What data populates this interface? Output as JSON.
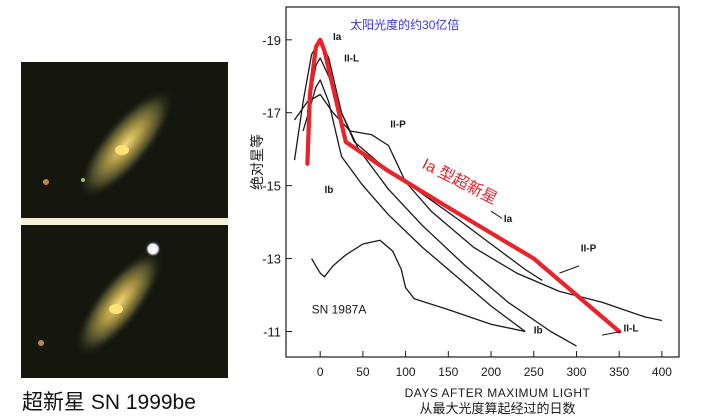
{
  "images": {
    "caption": "超新星 SN 1999be"
  },
  "chart_data": {
    "type": "line",
    "xlabel": "DAYS AFTER MAXIMUM LIGHT",
    "xlabel_cn": "从最大光度算起经过的日数",
    "ylabel": "绝对星等",
    "xlim": [
      -40,
      420
    ],
    "ylim": [
      -10.3,
      -19.9
    ],
    "y_inverted": true,
    "grid": false,
    "x_ticks": [
      0,
      50,
      100,
      150,
      200,
      250,
      300,
      350,
      400
    ],
    "y_ticks": [
      -19,
      -17,
      -15,
      -13,
      -11
    ],
    "annotation_top": "太阳光度的约30亿倍",
    "annotation_red": "Ia 型超新星",
    "inset_label": "SN 1987A",
    "series": [
      {
        "name": "Ia",
        "x": [
          -30,
          -20,
          -10,
          0,
          10,
          25,
          40,
          70,
          100,
          130,
          160,
          200,
          240,
          260
        ],
        "y": [
          -15.7,
          -17.3,
          -18.6,
          -19.0,
          -18.5,
          -17.0,
          -16.2,
          -15.6,
          -15.1,
          -14.6,
          -14.1,
          -13.4,
          -12.7,
          -12.4
        ],
        "label_pos": [
          15,
          -19.1
        ]
      },
      {
        "name": "II-L",
        "x": [
          -15,
          -5,
          0,
          10,
          25,
          45,
          80,
          120,
          170,
          220,
          270,
          300
        ],
        "y": [
          -17.0,
          -18.3,
          -18.5,
          -18.0,
          -17.0,
          -16.0,
          -14.9,
          -13.9,
          -12.8,
          -11.8,
          -11.0,
          -10.6
        ],
        "label_pos": [
          30,
          -18.5
        ]
      },
      {
        "name": "II-P",
        "x": [
          -30,
          -15,
          0,
          15,
          35,
          60,
          80,
          90,
          100,
          130,
          180,
          230,
          280,
          330,
          380,
          400
        ],
        "y": [
          -16.8,
          -17.3,
          -17.5,
          -17.0,
          -16.5,
          -16.4,
          -16.1,
          -15.6,
          -15.1,
          -14.3,
          -13.3,
          -12.6,
          -12.1,
          -11.8,
          -11.4,
          -11.3
        ],
        "label_pos": [
          80,
          -16.6
        ]
      },
      {
        "name": "Ib",
        "x": [
          -20,
          -5,
          0,
          10,
          25,
          50,
          80,
          120,
          160,
          200,
          240
        ],
        "y": [
          -16.5,
          -17.7,
          -17.9,
          -17.3,
          -15.8,
          -15.0,
          -14.2,
          -13.3,
          -12.5,
          -11.7,
          -11.0
        ],
        "label_pos": [
          5,
          -15.0
        ]
      },
      {
        "name": "SN 1987A",
        "x": [
          -10,
          -5,
          0,
          5,
          15,
          30,
          50,
          70,
          85,
          95,
          100,
          110,
          150,
          200,
          240
        ],
        "y": [
          -13.0,
          -12.8,
          -12.6,
          -12.5,
          -12.8,
          -13.1,
          -13.4,
          -13.5,
          -13.2,
          -12.7,
          -12.2,
          -11.9,
          -11.6,
          -11.2,
          -11.0
        ],
        "label_pos": [
          250,
          -10.9
        ]
      },
      {
        "name": "Ia 型超新星",
        "emphasis": true,
        "color": "#e8232a",
        "x": [
          -15,
          -12,
          -5,
          0,
          5,
          15,
          30,
          80,
          150,
          200,
          250,
          300,
          350
        ],
        "y": [
          -15.6,
          -17.5,
          -18.8,
          -19.0,
          -18.7,
          -17.7,
          -16.2,
          -15.4,
          -14.4,
          -13.7,
          -13.0,
          -12.0,
          -11.0
        ]
      }
    ],
    "curve_label_left": "Ib",
    "curve_label_ia_right": "Ia",
    "curve_label_iip_right": "II-P",
    "curve_label_iil_right": "II-L",
    "curve_label_ib_right": "Ib"
  },
  "colors": {
    "red": "#e8232a",
    "blue": "#3b34d8",
    "ink": "#1a1a1a"
  }
}
